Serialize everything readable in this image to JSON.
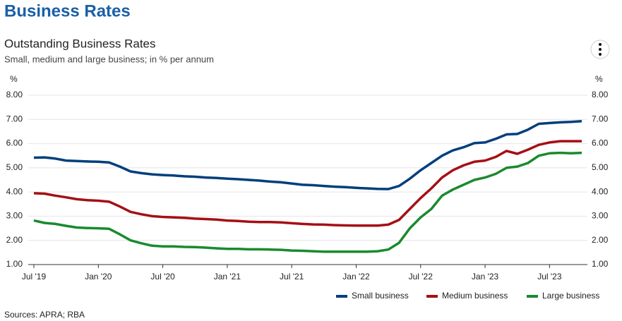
{
  "page_title": "Business Rates",
  "chart_data": {
    "type": "line",
    "title": "Outstanding Business Rates",
    "subtitle": "Small, medium and large business; in % per annum",
    "y_unit": "%",
    "source": "Sources: APRA; RBA",
    "categories": [
      "Jul '19",
      null,
      null,
      null,
      null,
      null,
      "Jan '20",
      null,
      null,
      null,
      null,
      null,
      "Jul '20",
      null,
      null,
      null,
      null,
      null,
      "Jan '21",
      null,
      null,
      null,
      null,
      null,
      "Jul '21",
      null,
      null,
      null,
      null,
      null,
      "Jan '22",
      null,
      null,
      null,
      null,
      null,
      "Jul '22",
      null,
      null,
      null,
      null,
      null,
      "Jan '23",
      null,
      null,
      null,
      null,
      null,
      "Jul '23",
      null,
      null,
      null
    ],
    "ylim": [
      1,
      8
    ],
    "yticks": [
      {
        "value": 1,
        "label": "1.00"
      },
      {
        "value": 2,
        "label": "2.00"
      },
      {
        "value": 3,
        "label": "3.00"
      },
      {
        "value": 4,
        "label": "4.00"
      },
      {
        "value": 5,
        "label": "5.00"
      },
      {
        "value": 6,
        "label": "6.00"
      },
      {
        "value": 7,
        "label": "7.00"
      },
      {
        "value": 8,
        "label": "8.00"
      }
    ],
    "grid": true,
    "legend": "bottom-right",
    "series": [
      {
        "name": "Small business",
        "color": "#003f7d",
        "values": [
          5.42,
          5.43,
          5.38,
          5.3,
          5.28,
          5.26,
          5.25,
          5.22,
          5.05,
          4.85,
          4.78,
          4.73,
          4.7,
          4.68,
          4.65,
          4.63,
          4.6,
          4.58,
          4.55,
          4.53,
          4.5,
          4.47,
          4.43,
          4.4,
          4.35,
          4.3,
          4.28,
          4.25,
          4.22,
          4.2,
          4.17,
          4.15,
          4.13,
          4.12,
          4.25,
          4.55,
          4.9,
          5.2,
          5.5,
          5.72,
          5.85,
          6.02,
          6.05,
          6.2,
          6.38,
          6.4,
          6.58,
          6.82,
          6.85,
          6.88,
          6.9,
          6.93
        ]
      },
      {
        "name": "Medium business",
        "color": "#a50f15",
        "values": [
          3.95,
          3.93,
          3.85,
          3.78,
          3.7,
          3.66,
          3.64,
          3.6,
          3.4,
          3.18,
          3.08,
          3.0,
          2.97,
          2.95,
          2.93,
          2.9,
          2.88,
          2.86,
          2.82,
          2.8,
          2.77,
          2.76,
          2.76,
          2.74,
          2.71,
          2.68,
          2.66,
          2.65,
          2.63,
          2.62,
          2.61,
          2.61,
          2.61,
          2.65,
          2.85,
          3.3,
          3.75,
          4.15,
          4.6,
          4.9,
          5.1,
          5.25,
          5.3,
          5.45,
          5.7,
          5.58,
          5.75,
          5.95,
          6.05,
          6.1,
          6.1,
          6.1
        ]
      },
      {
        "name": "Large business",
        "color": "#1a8a2e",
        "values": [
          2.82,
          2.72,
          2.68,
          2.6,
          2.53,
          2.51,
          2.5,
          2.48,
          2.25,
          2.0,
          1.88,
          1.78,
          1.75,
          1.75,
          1.73,
          1.72,
          1.7,
          1.67,
          1.65,
          1.65,
          1.63,
          1.63,
          1.62,
          1.61,
          1.58,
          1.57,
          1.55,
          1.53,
          1.53,
          1.53,
          1.53,
          1.53,
          1.55,
          1.62,
          1.9,
          2.5,
          2.95,
          3.3,
          3.85,
          4.1,
          4.3,
          4.5,
          4.6,
          4.75,
          5.0,
          5.05,
          5.2,
          5.5,
          5.6,
          5.62,
          5.6,
          5.62
        ]
      }
    ]
  }
}
